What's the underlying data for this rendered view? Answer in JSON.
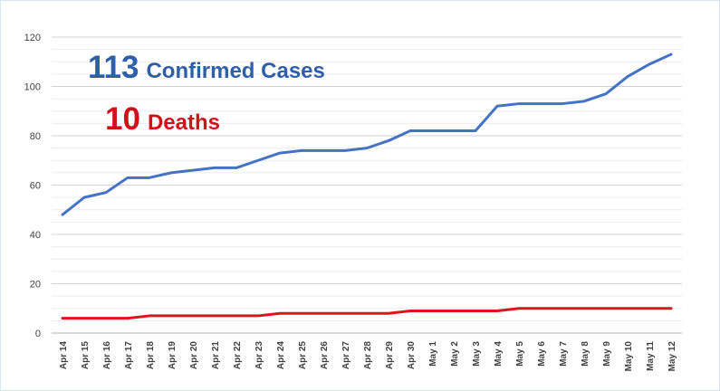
{
  "chart_data": {
    "type": "line",
    "categories": [
      "Apr 14",
      "Apr 15",
      "Apr 16",
      "Apr 17",
      "Apr 18",
      "Apr 19",
      "Apr 20",
      "Apr 21",
      "Apr 22",
      "Apr 23",
      "Apr 24",
      "Apr 25",
      "Apr 26",
      "Apr 27",
      "Apr 28",
      "Apr 29",
      "Apr 30",
      "May 1",
      "May 2",
      "May 3",
      "May 4",
      "May 5",
      "May 6",
      "May 7",
      "May 8",
      "May 9",
      "May 10",
      "May 11",
      "May 12"
    ],
    "series": [
      {
        "values": [
          48,
          55,
          57,
          63,
          63,
          65,
          66,
          67,
          67,
          70,
          73,
          74,
          74,
          74,
          75,
          78,
          82,
          82,
          82,
          82,
          92,
          93,
          93,
          93,
          94,
          97,
          104,
          109,
          113
        ],
        "color": "#4472c4"
      },
      {
        "values": [
          6,
          6,
          6,
          6,
          7,
          7,
          7,
          7,
          7,
          7,
          8,
          8,
          8,
          8,
          8,
          8,
          9,
          9,
          9,
          9,
          9,
          10,
          10,
          10,
          10,
          10,
          10,
          10,
          10
        ],
        "color": "#e0151c"
      }
    ],
    "ylim": [
      0,
      120
    ],
    "yticks": [
      0,
      20,
      40,
      60,
      80,
      100,
      120
    ],
    "grid": true,
    "legend": "none"
  },
  "callouts": {
    "confirmed_number": "113",
    "confirmed_label": "Confirmed Cases",
    "deaths_number": "10",
    "deaths_label": "Deaths"
  }
}
